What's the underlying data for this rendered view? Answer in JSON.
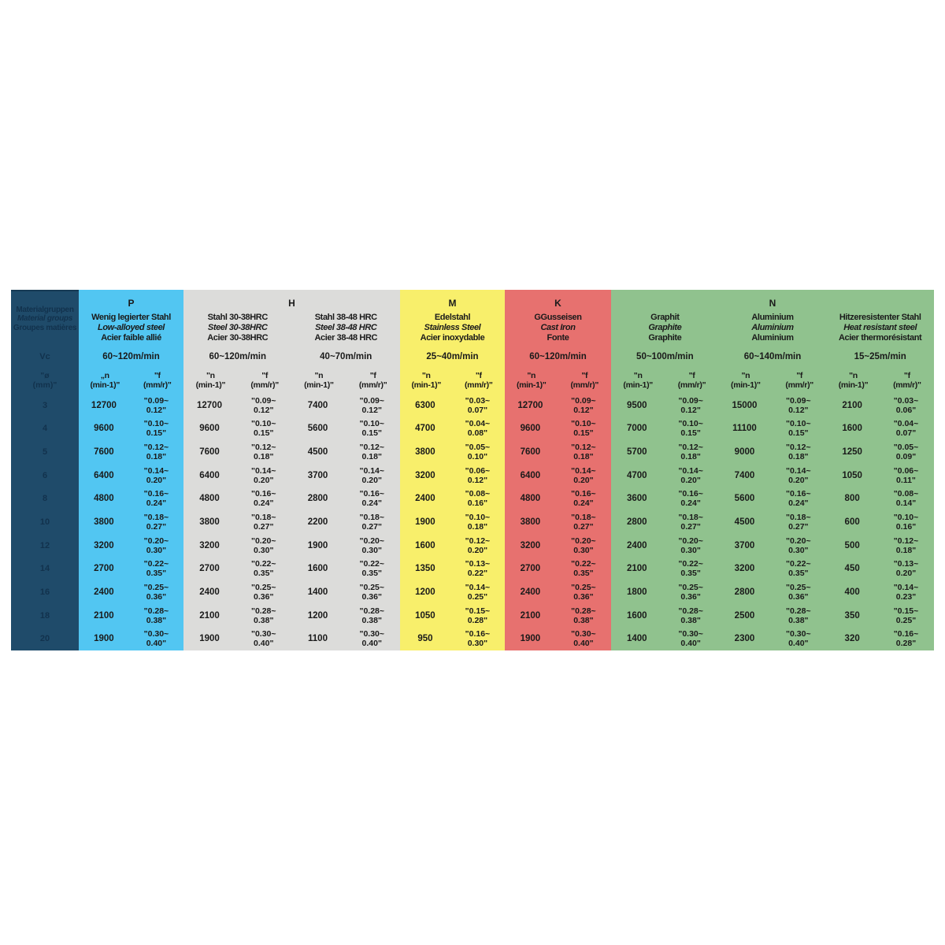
{
  "table": {
    "colors": {
      "label_bg": "#1f4b6a",
      "label_text": "#12324d",
      "group_p": "#52c6f2",
      "group_h": "#dcdcda",
      "group_m": "#f8ef6b",
      "group_k": "#e7716f",
      "group_n": "#90c28e",
      "body_text": "#1a1a1a"
    },
    "label_column": {
      "title_de": "Materialgruppen",
      "title_en": "Material groups",
      "title_fr": "Groupes matières",
      "vc_label": "Vc",
      "dia_line1": "\"ø",
      "dia_line2": "(mm)\"",
      "diameters": [
        "3",
        "4",
        "5",
        "6",
        "8",
        "10",
        "12",
        "14",
        "16",
        "18",
        "20"
      ]
    },
    "subheader": {
      "n": [
        "\"n",
        "(min-1)\""
      ],
      "f": [
        "\"f",
        "(mm/r)\""
      ]
    },
    "groups": [
      {
        "letter": "P",
        "color": "#52c6f2",
        "materials": [
          {
            "name_de": "Wenig legierter Stahl",
            "name_en": "Low-alloyed steel",
            "name_fr": "Acier faible allié",
            "speed": "60~120m/min",
            "nh": [
              "„n",
              "(min-1)\""
            ],
            "rows": [
              {
                "n": "12700",
                "f": "\"0.09~0.12\""
              },
              {
                "n": "9600",
                "f": "\"0.10~0.15\""
              },
              {
                "n": "7600",
                "f": "\"0.12~0.18\""
              },
              {
                "n": "6400",
                "f": "\"0.14~0.20\""
              },
              {
                "n": "4800",
                "f": "\"0.16~0.24\""
              },
              {
                "n": "3800",
                "f": "\"0.18~0.27\""
              },
              {
                "n": "3200",
                "f": "\"0.20~0.30\""
              },
              {
                "n": "2700",
                "f": "\"0.22~0.35\""
              },
              {
                "n": "2400",
                "f": "\"0.25~0.36\""
              },
              {
                "n": "2100",
                "f": "\"0.28~0.38\""
              },
              {
                "n": "1900",
                "f": "\"0.30~0.40\""
              }
            ]
          }
        ]
      },
      {
        "letter": "H",
        "color": "#dcdcda",
        "materials": [
          {
            "name_de": "Stahl 30-38HRC",
            "name_en": "Steel 30-38HRC",
            "name_fr": "Acier 30-38HRC",
            "speed": "60~120m/min",
            "rows": [
              {
                "n": "12700",
                "f": "\"0.09~0.12\""
              },
              {
                "n": "9600",
                "f": "\"0.10~0.15\""
              },
              {
                "n": "7600",
                "f": "\"0.12~0.18\""
              },
              {
                "n": "6400",
                "f": "\"0.14~0.20\""
              },
              {
                "n": "4800",
                "f": "\"0.16~0.24\""
              },
              {
                "n": "3800",
                "f": "\"0.18~0.27\""
              },
              {
                "n": "3200",
                "f": "\"0.20~0.30\""
              },
              {
                "n": "2700",
                "f": "\"0.22~0.35\""
              },
              {
                "n": "2400",
                "f": "\"0.25~0.36\""
              },
              {
                "n": "2100",
                "f": "\"0.28~0.38\""
              },
              {
                "n": "1900",
                "f": "\"0.30~0.40\""
              }
            ]
          },
          {
            "name_de": "Stahl 38-48 HRC",
            "name_en": "Steel 38-48 HRC",
            "name_fr": "Acier 38-48 HRC",
            "speed": "40~70m/min",
            "rows": [
              {
                "n": "7400",
                "f": "\"0.09~0.12\""
              },
              {
                "n": "5600",
                "f": "\"0.10~0.15\""
              },
              {
                "n": "4500",
                "f": "\"0.12~0.18\""
              },
              {
                "n": "3700",
                "f": "\"0.14~0.20\""
              },
              {
                "n": "2800",
                "f": "\"0.16~0.24\""
              },
              {
                "n": "2200",
                "f": "\"0.18~0.27\""
              },
              {
                "n": "1900",
                "f": "\"0.20~0.30\""
              },
              {
                "n": "1600",
                "f": "\"0.22~0.35\""
              },
              {
                "n": "1400",
                "f": "\"0.25~0.36\""
              },
              {
                "n": "1200",
                "f": "\"0.28~0.38\""
              },
              {
                "n": "1100",
                "f": "\"0.30~0.40\""
              }
            ]
          }
        ]
      },
      {
        "letter": "M",
        "color": "#f8ef6b",
        "materials": [
          {
            "name_de": "Edelstahl",
            "name_en": "Stainless Steel",
            "name_fr": "Acier inoxydable",
            "speed": "25~40m/min",
            "rows": [
              {
                "n": "6300",
                "f": "\"0.03~0.07\""
              },
              {
                "n": "4700",
                "f": "\"0.04~0.08\""
              },
              {
                "n": "3800",
                "f": "\"0.05~0.10\""
              },
              {
                "n": "3200",
                "f": "\"0.06~0.12\""
              },
              {
                "n": "2400",
                "f": "\"0.08~0.16\""
              },
              {
                "n": "1900",
                "f": "\"0.10~0.18\""
              },
              {
                "n": "1600",
                "f": "\"0.12~0.20\""
              },
              {
                "n": "1350",
                "f": "\"0.13~0.22\""
              },
              {
                "n": "1200",
                "f": "\"0.14~0.25\""
              },
              {
                "n": "1050",
                "f": "\"0.15~0.28\""
              },
              {
                "n": "950",
                "f": "\"0.16~0.30\""
              }
            ]
          }
        ]
      },
      {
        "letter": "K",
        "color": "#e7716f",
        "materials": [
          {
            "name_de": "GGusseisen",
            "name_en": "Cast Iron",
            "name_fr": "Fonte",
            "speed": "60~120m/min",
            "rows": [
              {
                "n": "12700",
                "f": "\"0.09~0.12\""
              },
              {
                "n": "9600",
                "f": "\"0.10~0.15\""
              },
              {
                "n": "7600",
                "f": "\"0.12~0.18\""
              },
              {
                "n": "6400",
                "f": "\"0.14~0.20\""
              },
              {
                "n": "4800",
                "f": "\"0.16~0.24\""
              },
              {
                "n": "3800",
                "f": "\"0.18~0.27\""
              },
              {
                "n": "3200",
                "f": "\"0.20~0.30\""
              },
              {
                "n": "2700",
                "f": "\"0.22~0.35\""
              },
              {
                "n": "2400",
                "f": "\"0.25~0.36\""
              },
              {
                "n": "2100",
                "f": "\"0.28~0.38\""
              },
              {
                "n": "1900",
                "f": "\"0.30~0.40\""
              }
            ]
          }
        ]
      },
      {
        "letter": "N",
        "color": "#90c28e",
        "materials": [
          {
            "name_de": "Graphit",
            "name_en": "Graphite",
            "name_fr": "Graphite",
            "speed": "50~100m/min",
            "rows": [
              {
                "n": "9500",
                "f": "\"0.09~0.12\""
              },
              {
                "n": "7000",
                "f": "\"0.10~0.15\""
              },
              {
                "n": "5700",
                "f": "\"0.12~0.18\""
              },
              {
                "n": "4700",
                "f": "\"0.14~0.20\""
              },
              {
                "n": "3600",
                "f": "\"0.16~0.24\""
              },
              {
                "n": "2800",
                "f": "\"0.18~0.27\""
              },
              {
                "n": "2400",
                "f": "\"0.20~0.30\""
              },
              {
                "n": "2100",
                "f": "\"0.22~0.35\""
              },
              {
                "n": "1800",
                "f": "\"0.25~0.36\""
              },
              {
                "n": "1600",
                "f": "\"0.28~0.38\""
              },
              {
                "n": "1400",
                "f": "\"0.30~0.40\""
              }
            ]
          },
          {
            "name_de": "Aluminium",
            "name_en": "Aluminium",
            "name_fr": "Aluminium",
            "speed": "60~140m/min",
            "rows": [
              {
                "n": "15000",
                "f": "\"0.09~0.12\""
              },
              {
                "n": "11100",
                "f": "\"0.10~0.15\""
              },
              {
                "n": "9000",
                "f": "\"0.12~0.18\""
              },
              {
                "n": "7400",
                "f": "\"0.14~0.20\""
              },
              {
                "n": "5600",
                "f": "\"0.16~0.24\""
              },
              {
                "n": "4500",
                "f": "\"0.18~0.27\""
              },
              {
                "n": "3700",
                "f": "\"0.20~0.30\""
              },
              {
                "n": "3200",
                "f": "\"0.22~0.35\""
              },
              {
                "n": "2800",
                "f": "\"0.25~0.36\""
              },
              {
                "n": "2500",
                "f": "\"0.28~0.38\""
              },
              {
                "n": "2300",
                "f": "\"0.30~0.40\""
              }
            ]
          },
          {
            "name_de": "Hitzeresistenter Stahl",
            "name_en": "Heat resistant steel",
            "name_fr": "Acier thermorésistant",
            "speed": "15~25m/min",
            "rows": [
              {
                "n": "2100",
                "f": "\"0.03~0.06\""
              },
              {
                "n": "1600",
                "f": "\"0.04~0.07\""
              },
              {
                "n": "1250",
                "f": "\"0.05~0.09\""
              },
              {
                "n": "1050",
                "f": "\"0.06~0.11\""
              },
              {
                "n": "800",
                "f": "\"0.08~0.14\""
              },
              {
                "n": "600",
                "f": "\"0.10~0.16\""
              },
              {
                "n": "500",
                "f": "\"0.12~0.18\""
              },
              {
                "n": "450",
                "f": "\"0.13~0.20\""
              },
              {
                "n": "400",
                "f": "\"0.14~0.23\""
              },
              {
                "n": "350",
                "f": "\"0.15~0.25\""
              },
              {
                "n": "320",
                "f": "\"0.16~0.28\""
              }
            ]
          }
        ]
      }
    ]
  }
}
